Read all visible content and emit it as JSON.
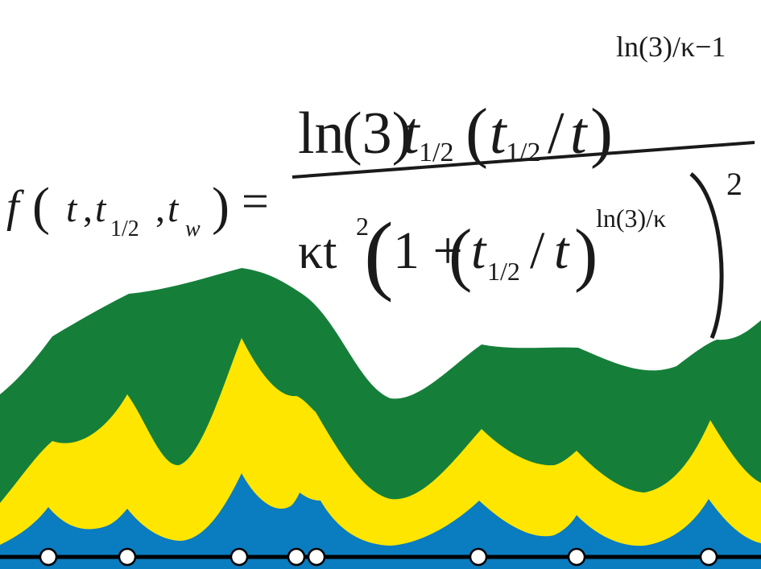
{
  "formula": {
    "lhs": {
      "func": "f",
      "open": "(",
      "arg1": "t",
      "comma1": ",",
      "arg2": "t",
      "arg2_sub": "1/2",
      "comma2": ",",
      "arg3": "t",
      "arg3_sub": "w",
      "close": ")",
      "equals": "="
    },
    "numerator": {
      "ln": "ln",
      "ln_arg": "(3)",
      "t": "t",
      "t_sub": "1/2",
      "paren_open": "(",
      "ratio_t": "t",
      "ratio_t_sub": "1/2",
      "slash": "/",
      "over_t": "t",
      "paren_close": ")",
      "exponent": "ln(3)/κ−1"
    },
    "denominator": {
      "kappa_t": "κt",
      "kappa_t_exp": "2",
      "big_paren_open": "(",
      "one_plus": "1 +",
      "paren_open": "(",
      "ratio_t": "t",
      "ratio_t_sub": "1/2",
      "slash": "/",
      "over_t": "t",
      "paren_close": ")",
      "inner_exponent": "ln(3)/κ",
      "big_paren_close": ")",
      "outer_exponent": "2"
    }
  },
  "streamgraph": {
    "colors": {
      "bottom": "#0a7cc0",
      "middle": "#ffe600",
      "top": "#157f3a",
      "baseline": "#000000",
      "marker_fill": "#ffffff",
      "marker_stroke": "#000000"
    },
    "event_marker_count": 9,
    "layers": [
      "bottom",
      "middle",
      "top"
    ]
  }
}
